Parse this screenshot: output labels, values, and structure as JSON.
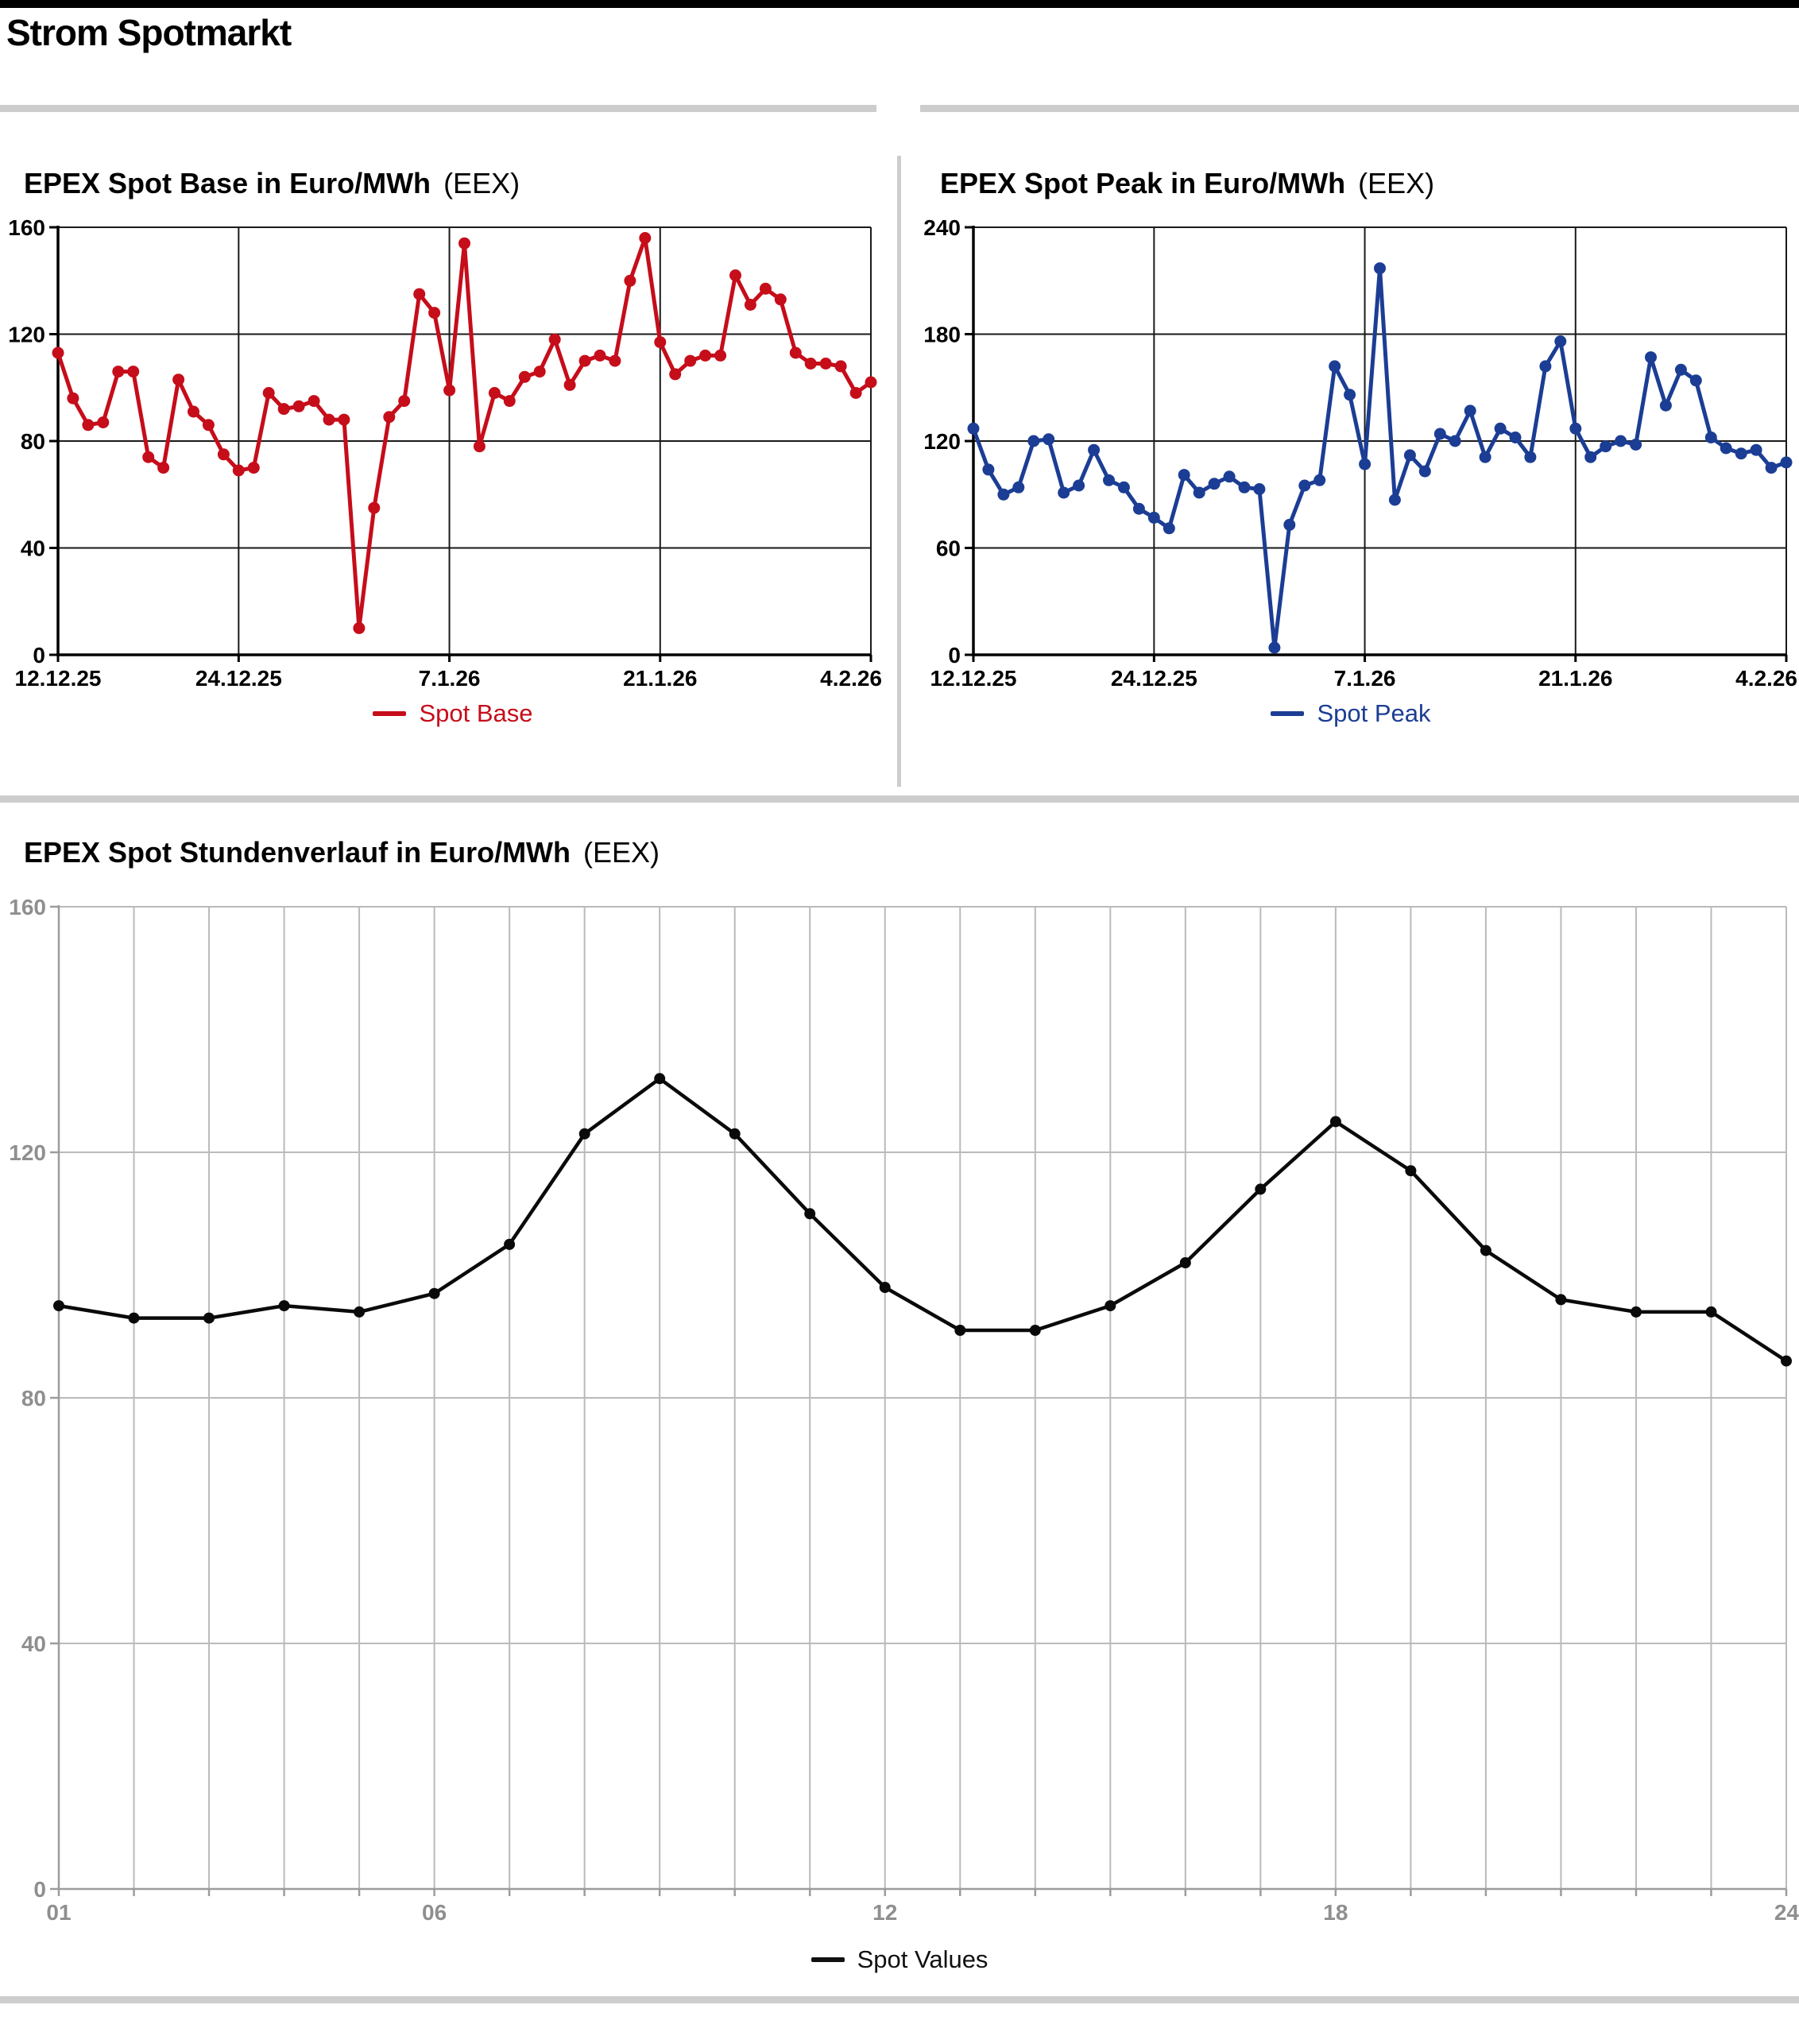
{
  "page": {
    "title": "Strom Spotmarkt"
  },
  "chart_data": [
    {
      "id": "base",
      "type": "line",
      "title": "EPEX Spot Base in Euro/MWh",
      "title_suffix": "(EEX)",
      "legend": "Spot Base",
      "color": "#c60d1a",
      "legend_color": "#c60d1a",
      "xlabel": "",
      "ylabel": "",
      "x_unit": "day",
      "x_range": [
        "12.12.25",
        "4.2.26"
      ],
      "xticks": [
        {
          "label": "12.12.25",
          "i": 0
        },
        {
          "label": "24.12.25",
          "i": 12
        },
        {
          "label": "7.1.26",
          "i": 26
        },
        {
          "label": "21.1.26",
          "i": 40
        },
        {
          "label": "4.2.26",
          "i": 54
        }
      ],
      "ylim": [
        0,
        160
      ],
      "yticks": [
        0,
        40,
        80,
        120,
        160
      ],
      "grid": true,
      "legend_position": "bottom-center",
      "values": [
        113,
        96,
        86,
        87,
        106,
        106,
        74,
        70,
        103,
        91,
        86,
        75,
        69,
        70,
        98,
        92,
        93,
        95,
        88,
        88,
        10,
        55,
        89,
        95,
        135,
        128,
        99,
        154,
        78,
        98,
        95,
        104,
        106,
        118,
        101,
        110,
        112,
        110,
        140,
        156,
        117,
        105,
        110,
        112,
        112,
        142,
        131,
        137,
        133,
        113,
        109,
        109,
        108,
        98,
        102
      ]
    },
    {
      "id": "peak",
      "type": "line",
      "title": "EPEX Spot Peak in Euro/MWh",
      "title_suffix": "(EEX)",
      "legend": "Spot Peak",
      "color": "#1b3d94",
      "legend_color": "#1b3d94",
      "xlabel": "",
      "ylabel": "",
      "x_unit": "day",
      "x_range": [
        "12.12.25",
        "4.2.26"
      ],
      "xticks": [
        {
          "label": "12.12.25",
          "i": 0
        },
        {
          "label": "24.12.25",
          "i": 12
        },
        {
          "label": "7.1.26",
          "i": 26
        },
        {
          "label": "21.1.26",
          "i": 40
        },
        {
          "label": "4.2.26",
          "i": 54
        }
      ],
      "ylim": [
        0,
        240
      ],
      "yticks": [
        0,
        60,
        120,
        180,
        240
      ],
      "grid": true,
      "legend_position": "bottom-center",
      "values": [
        127,
        104,
        90,
        94,
        120,
        121,
        91,
        95,
        115,
        98,
        94,
        82,
        77,
        71,
        101,
        91,
        96,
        100,
        94,
        93,
        4,
        73,
        95,
        98,
        162,
        146,
        107,
        217,
        87,
        112,
        103,
        124,
        120,
        137,
        111,
        127,
        122,
        111,
        162,
        176,
        127,
        111,
        117,
        120,
        118,
        167,
        140,
        160,
        154,
        122,
        116,
        113,
        115,
        105,
        108
      ]
    },
    {
      "id": "hourly",
      "type": "line",
      "title": "EPEX Spot Stundenverlauf in Euro/MWh",
      "title_suffix": "(EEX)",
      "legend": "Spot Values",
      "color": "#0a0a0a",
      "legend_color": "#111111",
      "xlabel": "",
      "ylabel": "",
      "x_unit": "hour",
      "x_range": [
        "01",
        "24"
      ],
      "xticks": [
        {
          "label": "01",
          "i": 0
        },
        {
          "label": "06",
          "i": 5
        },
        {
          "label": "12",
          "i": 11
        },
        {
          "label": "18",
          "i": 17
        },
        {
          "label": "24",
          "i": 23
        }
      ],
      "ylim": [
        0,
        160
      ],
      "yticks": [
        0,
        40,
        80,
        120,
        160
      ],
      "grid": true,
      "legend_position": "bottom-center",
      "values": [
        95,
        93,
        93,
        95,
        94,
        97,
        105,
        123,
        132,
        123,
        110,
        98,
        91,
        91,
        95,
        102,
        114,
        125,
        117,
        104,
        96,
        94,
        94,
        86
      ]
    }
  ]
}
